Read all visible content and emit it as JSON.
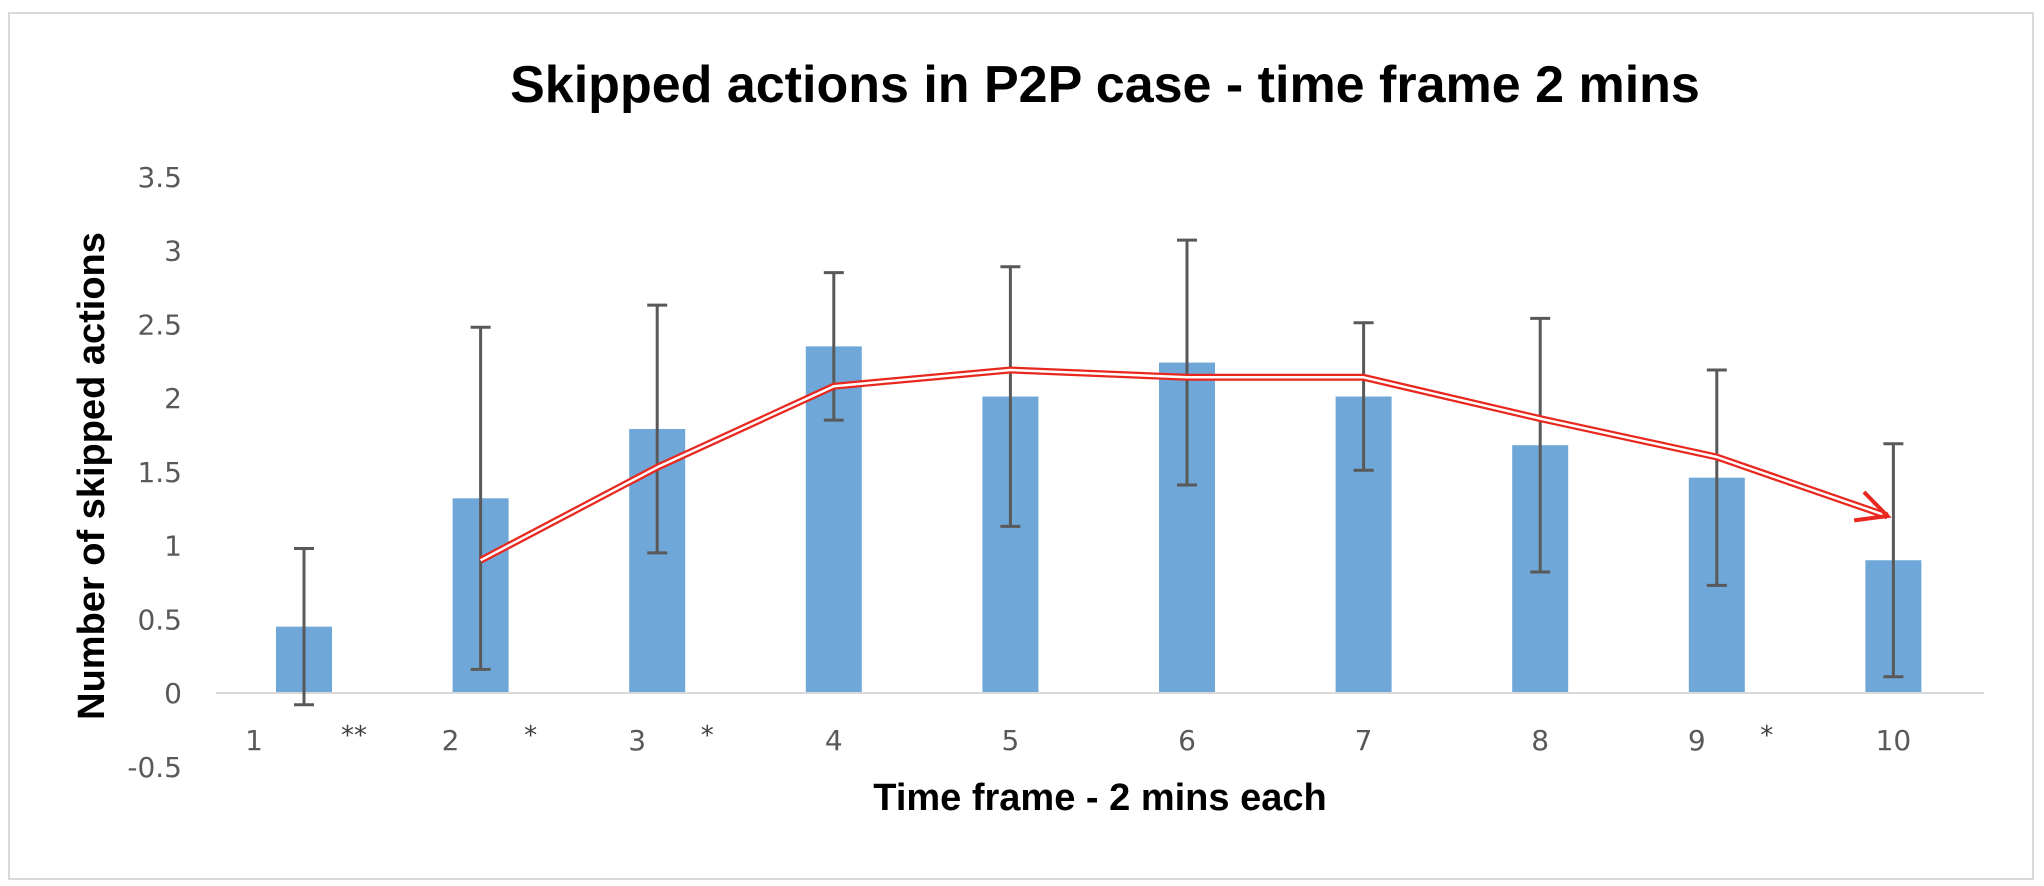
{
  "chart_data": {
    "type": "bar",
    "title": "Skipped actions in P2P case - time frame 2 mins",
    "xlabel": "Time frame - 2 mins each",
    "ylabel": "Number of skipped actions",
    "categories": [
      "1",
      "2",
      "3",
      "4",
      "5",
      "6",
      "7",
      "8",
      "9",
      "10"
    ],
    "series": [
      {
        "values": [
          0.45,
          1.32,
          1.79,
          2.35,
          2.01,
          2.24,
          2.01,
          1.68,
          1.46,
          0.9
        ],
        "error_bars": [
          0.53,
          1.16,
          0.84,
          0.5,
          0.88,
          0.83,
          0.5,
          0.86,
          0.73,
          0.79
        ],
        "color": "#6fa8d8"
      }
    ],
    "significance_markers": [
      "**",
      "*",
      "*",
      "",
      "",
      "",
      "",
      "",
      "*",
      ""
    ],
    "trend_arrow": {
      "x": [
        2,
        3,
        4,
        5,
        6,
        7,
        8,
        9,
        10
      ],
      "y": [
        0.9,
        1.53,
        2.08,
        2.19,
        2.14,
        2.14,
        1.86,
        1.6,
        1.2
      ],
      "color": "#e8271e"
    },
    "ylim": [
      -0.5,
      3.5
    ],
    "yticks": [
      "3.5",
      "3",
      "2.5",
      "2",
      "1.5",
      "1",
      "0.5",
      "0",
      "-0.5"
    ],
    "grid": false,
    "legend": "none"
  }
}
